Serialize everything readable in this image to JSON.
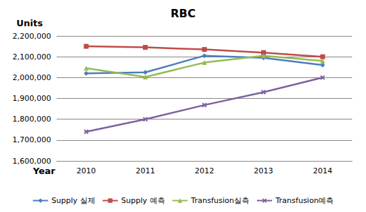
{
  "chart_data": {
    "type": "line",
    "title": "RBC",
    "y_label": "Units",
    "x_label": "Year",
    "categories": [
      "2010",
      "2011",
      "2012",
      "2013",
      "2014"
    ],
    "series": [
      {
        "name": "Supply 실제",
        "color": "#4a7ebb",
        "marker": "diamond",
        "values": [
          2020000,
          2025000,
          2105000,
          2095000,
          2060000
        ]
      },
      {
        "name": "Supply 예측",
        "color": "#be4b48",
        "marker": "square",
        "values": [
          2150000,
          2145000,
          2135000,
          2120000,
          2100000
        ]
      },
      {
        "name": "Transfusion실측",
        "color": "#98b954",
        "marker": "triangle",
        "values": [
          2045000,
          2003000,
          2072000,
          2105000,
          2080000
        ]
      },
      {
        "name": "Transfusion예측",
        "color": "#7d60a0",
        "marker": "x",
        "values": [
          1740000,
          1800000,
          1868000,
          1930000,
          2000000
        ]
      }
    ],
    "ylim": [
      1600000,
      2200000
    ],
    "yticks": [
      {
        "value": 1600000,
        "label": "1,600,000"
      },
      {
        "value": 1700000,
        "label": "1,700,000"
      },
      {
        "value": 1800000,
        "label": "1,800,000"
      },
      {
        "value": 1900000,
        "label": "1,900,000"
      },
      {
        "value": 2000000,
        "label": "2,000,000"
      },
      {
        "value": 2100000,
        "label": "2,100,000"
      },
      {
        "value": 2200000,
        "label": "2,200,000"
      }
    ],
    "grid": true,
    "legend": "bottom"
  }
}
